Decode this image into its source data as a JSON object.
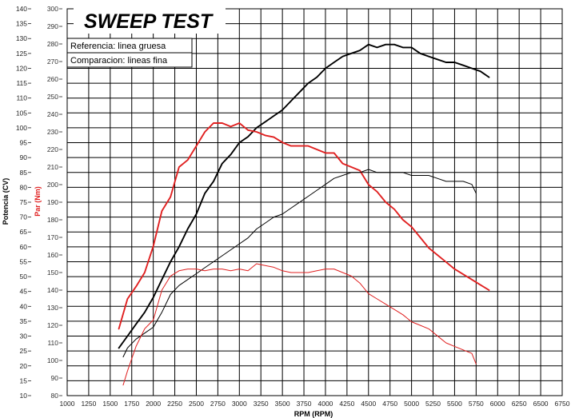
{
  "chart_data": {
    "type": "line",
    "title": "SWEEP TEST",
    "xlabel": "RPM (RPM)",
    "ylabel_left": "Potencia (CV)",
    "ylabel_right": "Par (Nm)",
    "xlim": [
      1000,
      6750
    ],
    "ylim_left": [
      10,
      140
    ],
    "ylim_right": [
      80,
      300
    ],
    "x_ticks": [
      1000,
      1250,
      1500,
      1750,
      2000,
      2250,
      2500,
      2750,
      3000,
      3250,
      3500,
      3750,
      4000,
      4250,
      4500,
      4750,
      5000,
      5250,
      5500,
      5750,
      6000,
      6250,
      6500,
      6750
    ],
    "y_ticks_left": [
      10,
      15,
      20,
      25,
      30,
      35,
      40,
      45,
      50,
      55,
      60,
      65,
      70,
      75,
      80,
      85,
      90,
      95,
      100,
      105,
      110,
      115,
      120,
      125,
      130,
      135,
      140
    ],
    "y_ticks_right": [
      80,
      90,
      100,
      110,
      120,
      130,
      140,
      150,
      160,
      170,
      180,
      190,
      200,
      210,
      220,
      230,
      240,
      250,
      260,
      270,
      280,
      290,
      300
    ],
    "grid": true,
    "legend": {
      "position": "top-left",
      "entries": [
        "Referencia: linea gruesa",
        "Comparacion: lineas fina"
      ]
    },
    "colors": {
      "power": "#000000",
      "torque": "#e02020"
    },
    "series": [
      {
        "name": "Referencia: linea gruesa",
        "quantity": "Potencia",
        "axis": "left",
        "style": "thick",
        "x": [
          1600,
          1700,
          1800,
          1900,
          2000,
          2100,
          2200,
          2300,
          2400,
          2500,
          2600,
          2700,
          2800,
          2900,
          3000,
          3100,
          3200,
          3300,
          3400,
          3500,
          3600,
          3700,
          3800,
          3900,
          4000,
          4100,
          4200,
          4300,
          4400,
          4500,
          4600,
          4700,
          4800,
          4900,
          5000,
          5100,
          5200,
          5300,
          5400,
          5500,
          5600,
          5700,
          5800,
          5900
        ],
        "y": [
          26,
          30,
          34,
          38,
          43,
          49,
          55,
          60,
          66,
          71,
          78,
          82,
          88,
          91,
          95,
          97,
          100,
          102,
          104,
          106,
          109,
          112,
          115,
          117,
          120,
          122,
          124,
          125,
          126,
          128,
          127,
          128,
          128,
          127,
          127,
          125,
          124,
          123,
          122,
          122,
          121,
          120,
          119,
          117
        ]
      },
      {
        "name": "Referencia: linea gruesa",
        "quantity": "Par",
        "axis": "right",
        "style": "thick",
        "x": [
          1600,
          1700,
          1800,
          1900,
          2000,
          2100,
          2200,
          2300,
          2400,
          2500,
          2600,
          2700,
          2800,
          2900,
          3000,
          3100,
          3200,
          3300,
          3400,
          3500,
          3600,
          3700,
          3800,
          3900,
          4000,
          4100,
          4200,
          4300,
          4400,
          4500,
          4600,
          4700,
          4800,
          4900,
          5000,
          5100,
          5200,
          5300,
          5400,
          5500,
          5600,
          5700,
          5800,
          5900
        ],
        "y": [
          118,
          135,
          142,
          150,
          165,
          185,
          193,
          210,
          214,
          222,
          230,
          235,
          235,
          233,
          235,
          231,
          230,
          228,
          227,
          224,
          222,
          222,
          222,
          220,
          218,
          218,
          212,
          210,
          208,
          200,
          196,
          190,
          186,
          180,
          176,
          170,
          164,
          160,
          156,
          152,
          149,
          146,
          143,
          140
        ]
      },
      {
        "name": "Comparacion: lineas fina",
        "quantity": "Potencia",
        "axis": "left",
        "style": "thin",
        "x": [
          1650,
          1700,
          1800,
          1900,
          2000,
          2100,
          2200,
          2300,
          2400,
          2500,
          2600,
          2700,
          2800,
          2900,
          3000,
          3100,
          3200,
          3300,
          3400,
          3500,
          3600,
          3700,
          3800,
          3900,
          4000,
          4100,
          4200,
          4300,
          4400,
          4500,
          4600,
          4700,
          4800,
          4900,
          5000,
          5100,
          5200,
          5300,
          5400,
          5500,
          5600,
          5700,
          5750
        ],
        "y": [
          23,
          26,
          29,
          31,
          33,
          38,
          44,
          47,
          49,
          51,
          53,
          55,
          57,
          59,
          61,
          63,
          66,
          68,
          70,
          71,
          73,
          75,
          77,
          79,
          81,
          83,
          84,
          85,
          85,
          86,
          85,
          85,
          85,
          85,
          84,
          84,
          84,
          83,
          82,
          82,
          82,
          81,
          78
        ]
      },
      {
        "name": "Comparacion: lineas fina",
        "quantity": "Par",
        "axis": "right",
        "style": "thin",
        "x": [
          1650,
          1700,
          1800,
          1900,
          2000,
          2100,
          2200,
          2300,
          2400,
          2500,
          2600,
          2700,
          2800,
          2900,
          3000,
          3100,
          3200,
          3300,
          3400,
          3500,
          3600,
          3700,
          3800,
          3900,
          4000,
          4100,
          4200,
          4300,
          4400,
          4500,
          4600,
          4700,
          4800,
          4900,
          5000,
          5100,
          5200,
          5300,
          5400,
          5500,
          5600,
          5700,
          5750
        ],
        "y": [
          86,
          94,
          108,
          118,
          123,
          140,
          148,
          151,
          152,
          152,
          151,
          152,
          152,
          151,
          152,
          151,
          155,
          154,
          153,
          151,
          150,
          150,
          150,
          151,
          152,
          152,
          150,
          148,
          144,
          138,
          135,
          132,
          129,
          126,
          122,
          120,
          118,
          114,
          110,
          108,
          106,
          104,
          98
        ]
      }
    ]
  }
}
